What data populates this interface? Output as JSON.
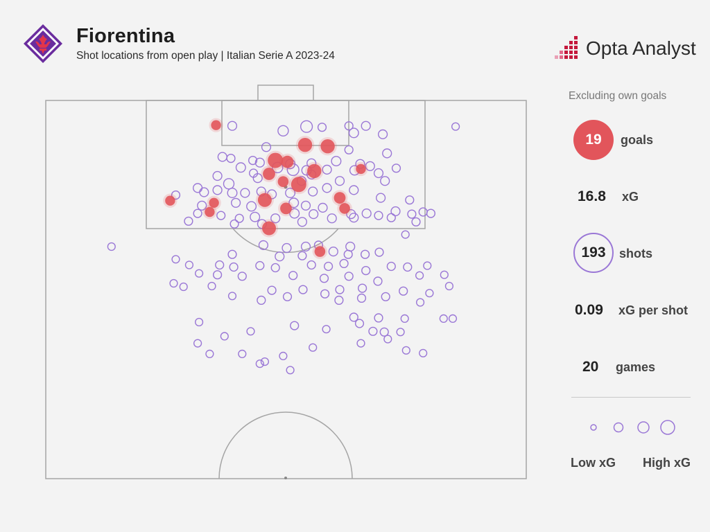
{
  "header": {
    "title": "Fiorentina",
    "subtitle": "Shot locations from open play | Italian Serie A 2023-24",
    "brand": "Opta Analyst",
    "logo_icon": "fiorentina-lily-crest-icon"
  },
  "panel": {
    "note": "Excluding own goals",
    "goals_value": "19",
    "goals_label": "goals",
    "xg_value": "16.8",
    "xg_label": "xG",
    "shots_value": "193",
    "shots_label": "shots",
    "xgps_value": "0.09",
    "xgps_label": "xG per shot",
    "games_value": "20",
    "games_label": "games",
    "legend_low": "Low xG",
    "legend_high": "High xG"
  },
  "colors": {
    "goal": "#e2555b",
    "shot": "#9a77d6",
    "pitch_line": "#a5a5a5",
    "accent_brand": "#c4183c"
  },
  "chart_data": {
    "type": "scatter",
    "title": "Fiorentina",
    "subtitle": "Shot locations from open play | Italian Serie A 2023-24",
    "x_axis": "pitch width (0-68 m, left to right)",
    "y_axis": "distance from goal line (m)",
    "size_encodes": "xG",
    "series": [
      {
        "name": "goals",
        "points": [
          [
            24.1,
            3.5,
            0.06
          ],
          [
            36.7,
            6.3,
            0.18
          ],
          [
            39.9,
            6.5,
            0.18
          ],
          [
            32.5,
            8.5,
            0.22
          ],
          [
            34.2,
            8.7,
            0.12
          ],
          [
            38.0,
            10.0,
            0.18
          ],
          [
            44.6,
            9.7,
            0.06
          ],
          [
            31.6,
            10.4,
            0.12
          ],
          [
            33.6,
            11.5,
            0.08
          ],
          [
            35.8,
            11.9,
            0.22
          ],
          [
            17.6,
            14.2,
            0.06
          ],
          [
            23.8,
            14.5,
            0.06
          ],
          [
            31.0,
            14.1,
            0.17
          ],
          [
            41.6,
            13.8,
            0.1
          ],
          [
            42.3,
            15.3,
            0.08
          ],
          [
            34.0,
            15.3,
            0.1
          ],
          [
            23.2,
            15.8,
            0.06
          ],
          [
            31.6,
            18.1,
            0.17
          ],
          [
            38.8,
            21.4,
            0.08
          ]
        ]
      },
      {
        "name": "shots",
        "points": [
          [
            26.4,
            3.6,
            0.04
          ],
          [
            33.6,
            4.3,
            0.07
          ],
          [
            36.9,
            3.7,
            0.1
          ],
          [
            39.1,
            3.8,
            0.03
          ],
          [
            42.9,
            3.6,
            0.03
          ],
          [
            45.3,
            3.6,
            0.04
          ],
          [
            43.6,
            4.6,
            0.05
          ],
          [
            47.7,
            4.8,
            0.04
          ],
          [
            58.0,
            3.7,
            0.02
          ],
          [
            31.2,
            6.6,
            0.04
          ],
          [
            42.9,
            7.0,
            0.03
          ],
          [
            48.3,
            7.5,
            0.04
          ],
          [
            25.0,
            8.0,
            0.04
          ],
          [
            26.2,
            8.2,
            0.03
          ],
          [
            29.3,
            8.5,
            0.03
          ],
          [
            30.3,
            8.8,
            0.04
          ],
          [
            34.6,
            9.0,
            0.05
          ],
          [
            37.6,
            8.9,
            0.04
          ],
          [
            41.1,
            8.6,
            0.05
          ],
          [
            44.5,
            9.0,
            0.04
          ],
          [
            45.9,
            9.3,
            0.04
          ],
          [
            49.6,
            9.6,
            0.03
          ],
          [
            27.6,
            9.5,
            0.05
          ],
          [
            29.4,
            10.3,
            0.03
          ],
          [
            32.8,
            9.5,
            0.07
          ],
          [
            35.0,
            9.8,
            0.1
          ],
          [
            36.9,
            9.9,
            0.05
          ],
          [
            39.8,
            9.8,
            0.04
          ],
          [
            43.7,
            9.9,
            0.05
          ],
          [
            47.1,
            10.3,
            0.04
          ],
          [
            24.3,
            10.7,
            0.04
          ],
          [
            25.9,
            11.8,
            0.07
          ],
          [
            30.0,
            11.0,
            0.04
          ],
          [
            36.2,
            11.4,
            0.04
          ],
          [
            37.6,
            10.5,
            0.04
          ],
          [
            41.6,
            11.4,
            0.04
          ],
          [
            48.0,
            11.4,
            0.04
          ],
          [
            21.5,
            12.4,
            0.04
          ],
          [
            22.4,
            13.0,
            0.04
          ],
          [
            24.3,
            12.7,
            0.04
          ],
          [
            26.4,
            13.1,
            0.05
          ],
          [
            28.2,
            13.1,
            0.04
          ],
          [
            30.5,
            12.9,
            0.04
          ],
          [
            32.0,
            13.3,
            0.04
          ],
          [
            34.6,
            13.1,
            0.05
          ],
          [
            37.8,
            12.9,
            0.04
          ],
          [
            39.8,
            12.4,
            0.04
          ],
          [
            43.6,
            12.7,
            0.04
          ],
          [
            47.4,
            13.8,
            0.04
          ],
          [
            51.5,
            14.1,
            0.03
          ],
          [
            18.4,
            13.4,
            0.03
          ],
          [
            22.1,
            14.9,
            0.04
          ],
          [
            26.9,
            14.5,
            0.04
          ],
          [
            29.1,
            15.0,
            0.05
          ],
          [
            35.1,
            14.5,
            0.05
          ],
          [
            36.8,
            14.9,
            0.04
          ],
          [
            39.2,
            15.2,
            0.04
          ],
          [
            43.2,
            16.1,
            0.04
          ],
          [
            45.4,
            16.0,
            0.04
          ],
          [
            47.1,
            16.3,
            0.03
          ],
          [
            49.5,
            15.7,
            0.04
          ],
          [
            51.8,
            16.1,
            0.03
          ],
          [
            53.4,
            15.8,
            0.03
          ],
          [
            54.5,
            16.0,
            0.03
          ],
          [
            21.5,
            16.0,
            0.03
          ],
          [
            24.8,
            16.3,
            0.03
          ],
          [
            27.4,
            16.7,
            0.03
          ],
          [
            29.6,
            16.5,
            0.05
          ],
          [
            32.5,
            16.7,
            0.04
          ],
          [
            35.2,
            16.0,
            0.05
          ],
          [
            37.9,
            16.1,
            0.04
          ],
          [
            40.5,
            16.7,
            0.04
          ],
          [
            48.9,
            16.6,
            0.03
          ],
          [
            26.7,
            17.5,
            0.03
          ],
          [
            30.6,
            17.5,
            0.04
          ],
          [
            36.3,
            17.2,
            0.04
          ],
          [
            20.2,
            17.1,
            0.03
          ],
          [
            52.4,
            17.2,
            0.03
          ],
          [
            43.6,
            16.6,
            0.04
          ],
          [
            50.9,
            19.0,
            0.02
          ],
          [
            9.3,
            20.7,
            0.02
          ],
          [
            30.8,
            20.5,
            0.04
          ],
          [
            34.1,
            20.9,
            0.04
          ],
          [
            36.8,
            20.7,
            0.04
          ],
          [
            38.6,
            20.5,
            0.03
          ],
          [
            43.1,
            20.7,
            0.04
          ],
          [
            26.4,
            21.8,
            0.03
          ],
          [
            33.1,
            22.1,
            0.04
          ],
          [
            36.3,
            22.0,
            0.03
          ],
          [
            40.7,
            21.4,
            0.04
          ],
          [
            42.8,
            21.8,
            0.03
          ],
          [
            45.2,
            21.8,
            0.03
          ],
          [
            47.2,
            21.5,
            0.03
          ],
          [
            18.4,
            22.5,
            0.02
          ],
          [
            20.3,
            23.3,
            0.02
          ],
          [
            24.6,
            23.3,
            0.03
          ],
          [
            26.6,
            23.6,
            0.03
          ],
          [
            30.3,
            23.4,
            0.03
          ],
          [
            32.5,
            23.7,
            0.03
          ],
          [
            37.6,
            23.3,
            0.03
          ],
          [
            40.0,
            23.5,
            0.03
          ],
          [
            42.2,
            23.1,
            0.03
          ],
          [
            45.3,
            24.1,
            0.03
          ],
          [
            48.9,
            23.5,
            0.03
          ],
          [
            51.2,
            23.6,
            0.03
          ],
          [
            54.0,
            23.4,
            0.02
          ],
          [
            21.7,
            24.5,
            0.02
          ],
          [
            24.3,
            24.7,
            0.03
          ],
          [
            27.8,
            24.9,
            0.03
          ],
          [
            35.0,
            24.8,
            0.03
          ],
          [
            39.4,
            25.2,
            0.03
          ],
          [
            42.9,
            24.9,
            0.03
          ],
          [
            47.0,
            25.6,
            0.03
          ],
          [
            52.9,
            24.8,
            0.02
          ],
          [
            56.4,
            24.7,
            0.02
          ],
          [
            18.1,
            25.9,
            0.02
          ],
          [
            19.5,
            26.4,
            0.02
          ],
          [
            23.5,
            26.3,
            0.02
          ],
          [
            32.0,
            26.9,
            0.03
          ],
          [
            36.4,
            26.8,
            0.03
          ],
          [
            41.6,
            26.8,
            0.03
          ],
          [
            44.8,
            26.6,
            0.03
          ],
          [
            50.6,
            27.0,
            0.03
          ],
          [
            54.3,
            27.3,
            0.02
          ],
          [
            57.1,
            26.3,
            0.02
          ],
          [
            26.4,
            27.7,
            0.02
          ],
          [
            30.5,
            28.3,
            0.03
          ],
          [
            34.2,
            27.8,
            0.03
          ],
          [
            39.5,
            27.4,
            0.03
          ],
          [
            41.5,
            28.3,
            0.03
          ],
          [
            44.7,
            28.0,
            0.03
          ],
          [
            48.1,
            27.8,
            0.03
          ],
          [
            53.0,
            28.6,
            0.02
          ],
          [
            43.6,
            30.7,
            0.03
          ],
          [
            47.1,
            30.8,
            0.03
          ],
          [
            50.8,
            30.9,
            0.02
          ],
          [
            56.3,
            30.9,
            0.02
          ],
          [
            57.6,
            30.9,
            0.02
          ],
          [
            21.7,
            31.4,
            0.02
          ],
          [
            46.3,
            32.7,
            0.03
          ],
          [
            35.2,
            31.9,
            0.03
          ],
          [
            29.0,
            32.7,
            0.02
          ],
          [
            39.7,
            32.4,
            0.02
          ],
          [
            44.4,
            31.6,
            0.03
          ],
          [
            47.9,
            32.8,
            0.03
          ],
          [
            25.3,
            33.4,
            0.02
          ],
          [
            48.4,
            33.8,
            0.02
          ],
          [
            50.2,
            32.8,
            0.02
          ],
          [
            21.5,
            34.4,
            0.02
          ],
          [
            44.6,
            34.4,
            0.02
          ],
          [
            51.0,
            35.4,
            0.02
          ],
          [
            53.4,
            35.8,
            0.02
          ],
          [
            23.2,
            35.9,
            0.02
          ],
          [
            27.8,
            35.9,
            0.02
          ],
          [
            37.8,
            35.0,
            0.02
          ],
          [
            31.0,
            37.0,
            0.02
          ],
          [
            30.3,
            37.3,
            0.02
          ],
          [
            34.6,
            38.2,
            0.02
          ],
          [
            33.6,
            36.2,
            0.02
          ]
        ]
      }
    ],
    "legend": {
      "low": "Low xG",
      "high": "High xG",
      "placement": "bottom-right"
    }
  }
}
